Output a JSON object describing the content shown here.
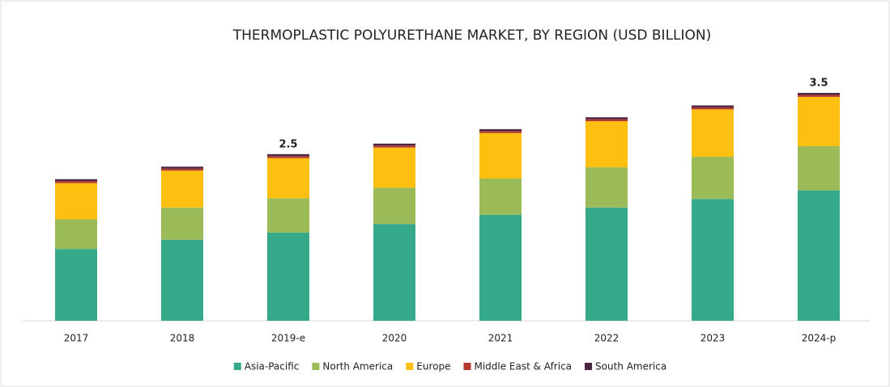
{
  "chart_data": {
    "type": "stacked_bar",
    "title": "THERMOPLASTIC POLYURETHANE MARKET, BY REGION (USD BILLION)",
    "categories": [
      "2017",
      "2018",
      "2019-e",
      "2020",
      "2021",
      "2022",
      "2023",
      "2024-p"
    ],
    "series": [
      {
        "name": "Asia-Pacific",
        "color": "#36a98b",
        "values": [
          1.09,
          1.23,
          1.34,
          1.47,
          1.61,
          1.72,
          1.85,
          1.98
        ]
      },
      {
        "name": "North America",
        "color": "#9bbb59",
        "values": [
          0.45,
          0.49,
          0.52,
          0.55,
          0.55,
          0.61,
          0.64,
          0.67
        ]
      },
      {
        "name": "Europe",
        "color": "#fdc010",
        "values": [
          0.55,
          0.56,
          0.61,
          0.61,
          0.69,
          0.7,
          0.72,
          0.75
        ]
      },
      {
        "name": "Middle East & Africa",
        "color": "#b53a2e",
        "values": [
          0.03,
          0.03,
          0.03,
          0.03,
          0.03,
          0.03,
          0.03,
          0.03
        ]
      },
      {
        "name": "South America",
        "color": "#4b2541",
        "values": [
          0.03,
          0.03,
          0.03,
          0.03,
          0.03,
          0.03,
          0.03,
          0.03
        ]
      }
    ],
    "annotations": [
      {
        "category": "2019-e",
        "value": 2.5
      },
      {
        "category": "2024-p",
        "value": 3.5
      }
    ]
  }
}
